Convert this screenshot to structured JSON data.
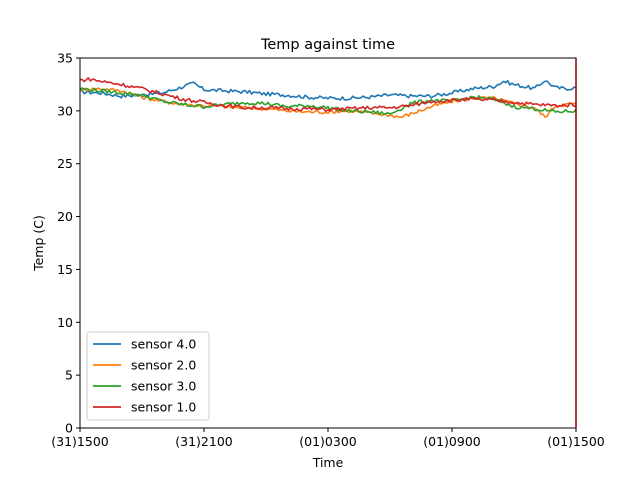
{
  "chart_data": {
    "type": "line",
    "title": "Temp against  time",
    "xlabel": "Time",
    "ylabel": "Temp (C)",
    "ylim": [
      0,
      35
    ],
    "yticks": [
      0,
      5,
      10,
      15,
      20,
      25,
      30,
      35
    ],
    "xlim": [
      0,
      24
    ],
    "xticks": [
      {
        "value": 0,
        "label": "(31)1500"
      },
      {
        "value": 6,
        "label": "(31)2100"
      },
      {
        "value": 12,
        "label": "(01)0300"
      },
      {
        "value": 18,
        "label": "(01)0900"
      },
      {
        "value": 24,
        "label": "(01)1500"
      }
    ],
    "grid": false,
    "legend_position": "bottom-left",
    "series": [
      {
        "name": "sensor 4.0",
        "color": "#1f77b4",
        "x": [
          0,
          1,
          2,
          3,
          4,
          5,
          5.5,
          6,
          7,
          8,
          9,
          10,
          11,
          12,
          13,
          14,
          15,
          16,
          17,
          18,
          19,
          20,
          20.5,
          21,
          22,
          22.5,
          23,
          23.5,
          24
        ],
        "y": [
          31.8,
          31.7,
          31.4,
          31.5,
          31.7,
          32.3,
          32.6,
          32.0,
          31.9,
          31.8,
          31.6,
          31.5,
          31.3,
          31.2,
          31.2,
          31.3,
          31.5,
          31.4,
          31.4,
          31.7,
          32.1,
          32.3,
          32.8,
          32.5,
          32.1,
          32.9,
          32.2,
          32.1,
          32.2
        ]
      },
      {
        "name": "sensor 2.0",
        "color": "#ff7f0e",
        "x": [
          0,
          1,
          2,
          3,
          4,
          5,
          6,
          7,
          8,
          9,
          10,
          11,
          12,
          13,
          14,
          15,
          15.5,
          16,
          17,
          18,
          19,
          20,
          21,
          22,
          22.5,
          23,
          24
        ],
        "y": [
          32.0,
          32.1,
          31.9,
          31.3,
          30.9,
          30.6,
          30.5,
          30.4,
          30.3,
          30.2,
          30.0,
          29.9,
          29.9,
          30.0,
          29.8,
          29.6,
          29.4,
          29.7,
          30.4,
          30.9,
          31.2,
          31.2,
          30.7,
          30.3,
          29.4,
          30.5,
          30.7
        ]
      },
      {
        "name": "sensor 3.0",
        "color": "#2ca02c",
        "x": [
          0,
          1,
          2,
          3,
          4,
          5,
          6,
          7,
          8,
          9,
          10,
          11,
          12,
          13,
          14,
          15,
          16,
          17,
          18,
          19,
          20,
          21,
          22,
          23,
          24
        ],
        "y": [
          32.1,
          31.9,
          31.7,
          31.5,
          30.9,
          30.6,
          30.4,
          30.6,
          30.8,
          30.7,
          30.4,
          30.5,
          30.3,
          30.0,
          29.9,
          29.7,
          30.7,
          31.0,
          30.9,
          31.3,
          31.1,
          30.4,
          30.2,
          29.9,
          30.0
        ]
      },
      {
        "name": "sensor 1.0",
        "color": "#d62728",
        "x": [
          0,
          0.5,
          1,
          2,
          3,
          4,
          5,
          6,
          7,
          8,
          9,
          10,
          11,
          12,
          13,
          14,
          15,
          16,
          17,
          18,
          19,
          20,
          21,
          22,
          23,
          24
        ],
        "y": [
          32.9,
          33.0,
          32.8,
          32.5,
          32.1,
          31.6,
          31.1,
          30.8,
          30.5,
          30.3,
          30.3,
          30.2,
          30.2,
          30.1,
          30.2,
          30.3,
          30.3,
          30.5,
          30.9,
          31.0,
          31.1,
          31.0,
          30.8,
          30.6,
          30.5,
          30.6
        ]
      }
    ]
  }
}
